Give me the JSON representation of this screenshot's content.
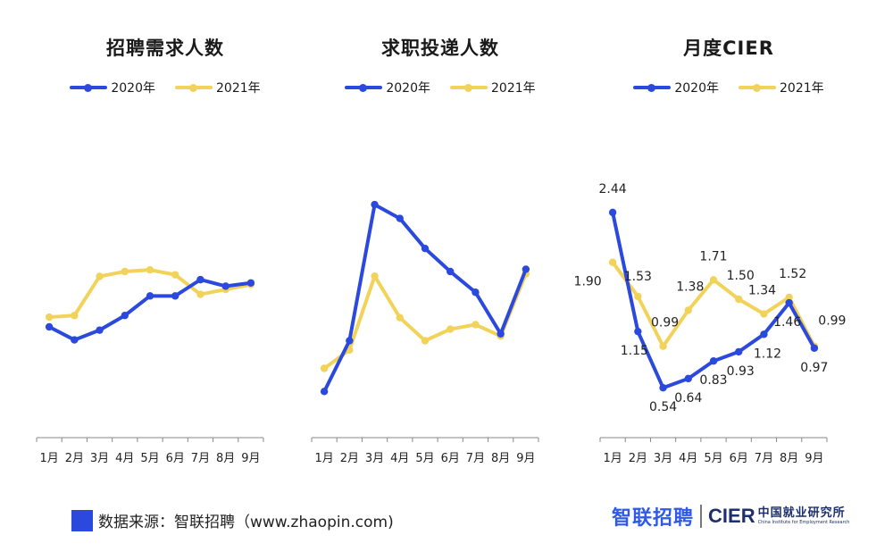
{
  "chart_data": [
    {
      "type": "line",
      "title": "招聘需求人数",
      "categories": [
        "1月",
        "2月",
        "3月",
        "4月",
        "5月",
        "6月",
        "7月",
        "8月",
        "9月"
      ],
      "series": [
        {
          "name": "2020年",
          "color": "#2b49dd",
          "values": [
            68,
            60,
            66,
            75,
            87,
            87,
            97,
            93,
            95
          ]
        },
        {
          "name": "2021年",
          "color": "#f2d35a",
          "values": [
            74,
            75,
            99,
            102,
            103,
            100,
            88,
            91,
            94
          ]
        }
      ],
      "ylim": [
        0,
        170
      ],
      "legend": "top-center",
      "grid": false
    },
    {
      "type": "line",
      "title": "求职投递人数",
      "categories": [
        "1月",
        "2月",
        "3月",
        "4月",
        "5月",
        "6月",
        "7月",
        "8月",
        "9月"
      ],
      "series": [
        {
          "name": "2020年",
          "color": "#2b49dd",
          "values": [
            20,
            42,
            101,
            95,
            82,
            72,
            63,
            45,
            73
          ]
        },
        {
          "name": "2021年",
          "color": "#f2d35a",
          "values": [
            30,
            38,
            70,
            52,
            42,
            47,
            49,
            44,
            71
          ]
        }
      ],
      "ylim": [
        0,
        120
      ],
      "legend": "top-center",
      "grid": false
    },
    {
      "type": "line",
      "title": "月度CIER",
      "categories": [
        "1月",
        "2月",
        "3月",
        "4月",
        "5月",
        "6月",
        "7月",
        "8月",
        "9月"
      ],
      "series": [
        {
          "name": "2020年",
          "color": "#2b49dd",
          "values": [
            2.44,
            1.15,
            0.54,
            0.64,
            0.83,
            0.93,
            1.12,
            1.46,
            0.97
          ]
        },
        {
          "name": "2021年",
          "color": "#f2d35a",
          "values": [
            1.9,
            1.53,
            0.99,
            1.38,
            1.71,
            1.5,
            1.34,
            1.52,
            0.99
          ]
        }
      ],
      "ylim": [
        0,
        3.0
      ],
      "legend": "top-center",
      "grid": false,
      "data_labels": true
    }
  ],
  "footer": {
    "source": "数据来源：智联招聘（www.zhaopin.com)",
    "logo_zhilian": "智联招聘",
    "logo_cier": "CIER",
    "logo_cier_cn": "中国就业研究所",
    "logo_cier_en": "China Institute for Employment Research"
  }
}
